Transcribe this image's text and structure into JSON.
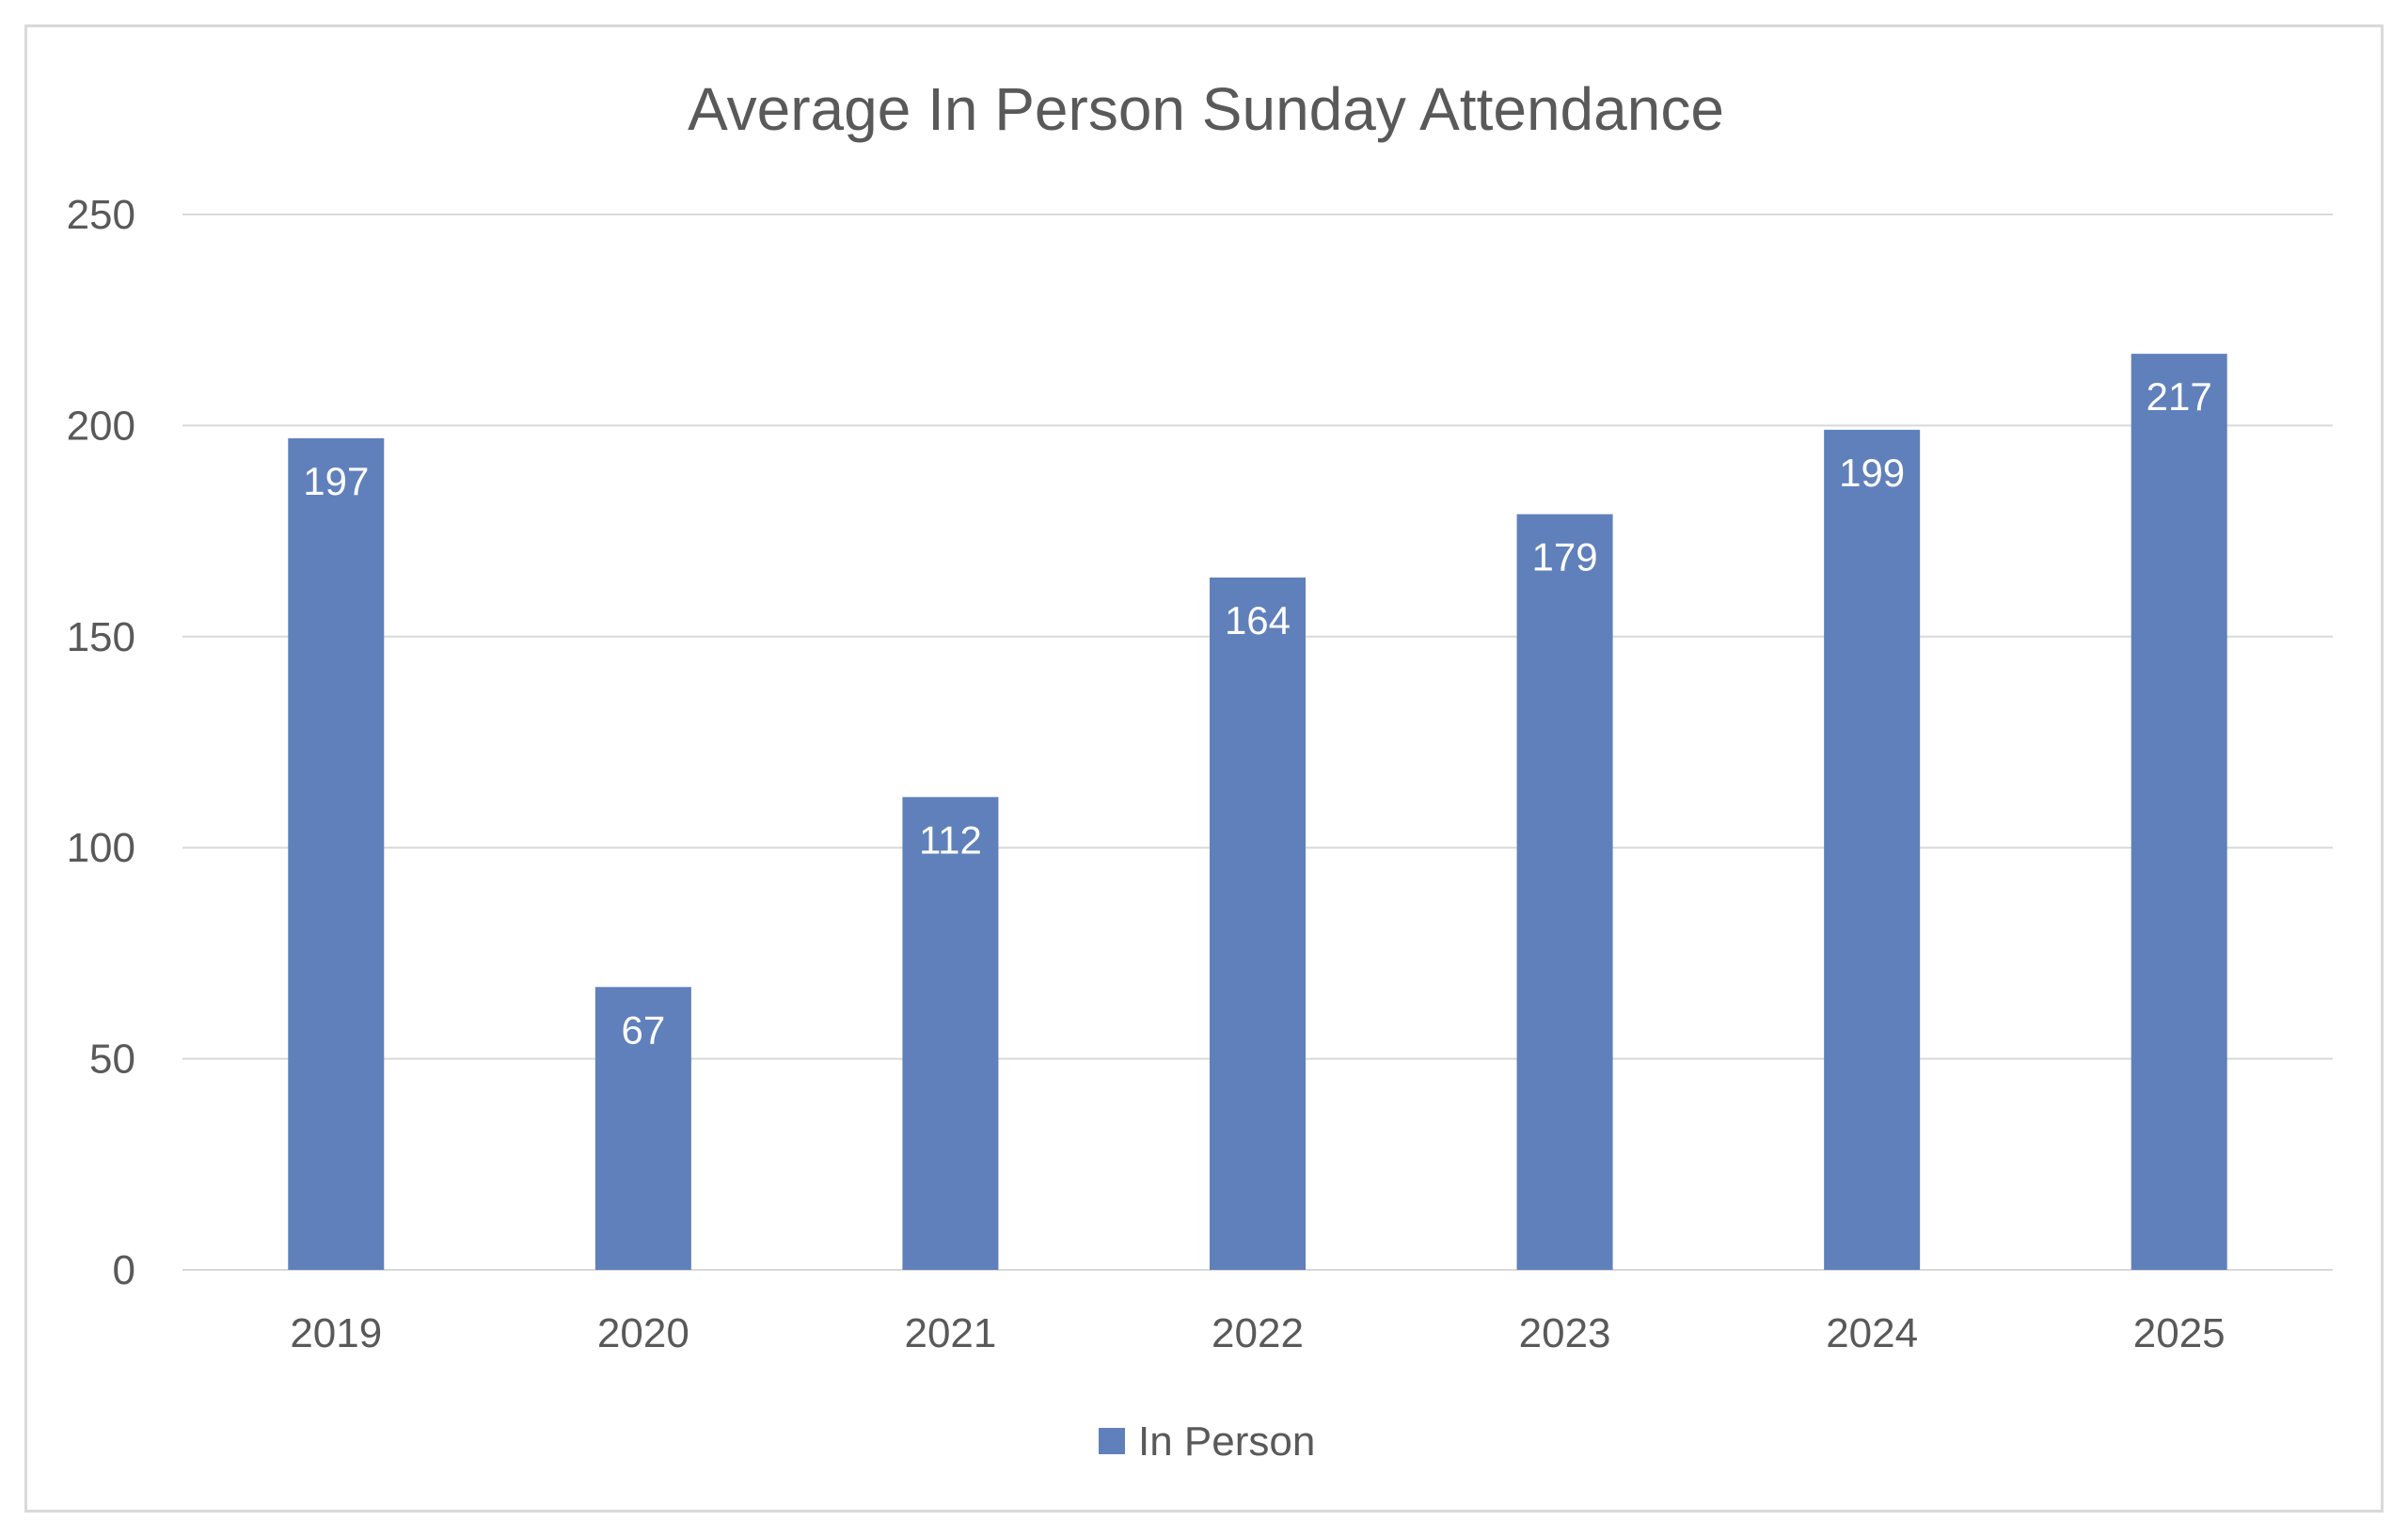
{
  "chart_data": {
    "type": "bar",
    "title": "Average In Person Sunday Attendance",
    "categories": [
      "2019",
      "2020",
      "2021",
      "2022",
      "2023",
      "2024",
      "2025"
    ],
    "series": [
      {
        "name": "In Person",
        "values": [
          197,
          67,
          112,
          164,
          179,
          199,
          217
        ],
        "color": "#6080bb"
      }
    ],
    "ylim": [
      0,
      250
    ],
    "yticks": [
      0,
      50,
      100,
      150,
      200,
      250
    ],
    "xlabel": "",
    "ylabel": "",
    "grid": true,
    "legend_position": "bottom",
    "colors": {
      "bar": "#6080bb",
      "grid": "#d9d9d9",
      "text": "#595959",
      "data_label": "#ffffff"
    }
  }
}
